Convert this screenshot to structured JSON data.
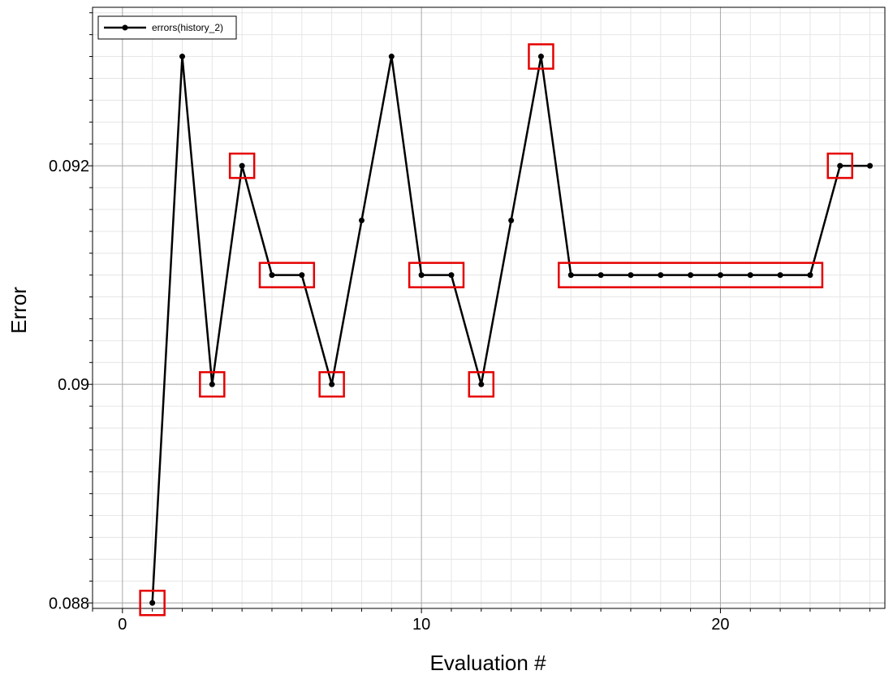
{
  "chart_data": {
    "type": "line",
    "title": "",
    "xlabel": "Evaluation #",
    "ylabel": "Error",
    "xlim": [
      -1,
      25.5
    ],
    "ylim": [
      0.08795,
      0.09345
    ],
    "x_ticks": [
      0,
      10,
      20
    ],
    "x_tick_labels": [
      "0",
      "10",
      "20"
    ],
    "y_ticks": [
      0.088,
      0.09,
      0.092
    ],
    "y_tick_labels": [
      "0.088",
      "0.09",
      "0.092"
    ],
    "grid": true,
    "legend_position": "top-left",
    "series": [
      {
        "name": "errors(history_2)",
        "color": "#000000",
        "x": [
          1,
          2,
          3,
          4,
          5,
          6,
          7,
          8,
          9,
          10,
          11,
          12,
          13,
          14,
          15,
          16,
          17,
          18,
          19,
          20,
          21,
          22,
          23,
          24,
          25
        ],
        "y": [
          0.088,
          0.093,
          0.09,
          0.092,
          0.091,
          0.091,
          0.09,
          0.0915,
          0.093,
          0.091,
          0.091,
          0.09,
          0.0915,
          0.093,
          0.091,
          0.091,
          0.091,
          0.091,
          0.091,
          0.091,
          0.091,
          0.091,
          0.091,
          0.092,
          0.092
        ]
      }
    ],
    "highlight_color": "#e60000",
    "highlight_groups": [
      [
        1,
        1
      ],
      [
        3,
        3
      ],
      [
        4,
        4
      ],
      [
        5,
        6
      ],
      [
        7,
        7
      ],
      [
        10,
        11
      ],
      [
        12,
        12
      ],
      [
        14,
        14
      ],
      [
        15,
        23
      ],
      [
        24,
        24
      ]
    ]
  }
}
